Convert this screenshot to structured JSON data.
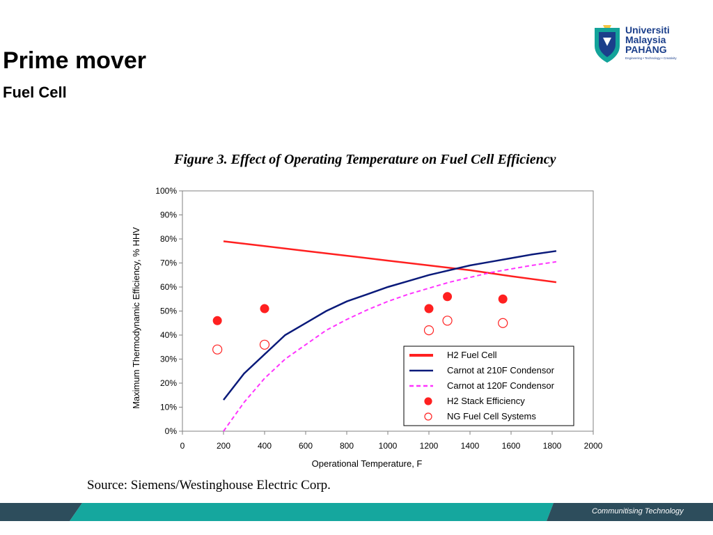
{
  "slide": {
    "title": "Prime mover",
    "subtitle": "Fuel Cell",
    "figure_caption": "Figure 3.  Effect of Operating Temperature on Fuel Cell Efficiency",
    "source": "Source:  Siemens/Westinghouse Electric Corp.",
    "footer_text": "Communitising Technology",
    "logo": {
      "line1": "Universiti",
      "line2": "Malaysia",
      "line3": "PAHANG",
      "tagline": "Engineering • Technology • Creativity",
      "badge": "UMP"
    },
    "colors": {
      "logo_blue": "#1b3f8b",
      "logo_teal": "#13a39a",
      "footer_teal": "#15a79e",
      "footer_dark": "#2d4d5c"
    }
  },
  "chart_data": {
    "type": "line",
    "xlabel": "Operational Temperature, F",
    "ylabel": "Maximum Thermodynamic Efficiency, % HHV",
    "xlim": [
      0,
      2000
    ],
    "ylim": [
      0,
      100
    ],
    "x_ticks": [
      "0",
      "200",
      "400",
      "600",
      "800",
      "1000",
      "1200",
      "1400",
      "1600",
      "1800",
      "2000"
    ],
    "y_ticks": [
      "0%",
      "10%",
      "20%",
      "30%",
      "40%",
      "50%",
      "60%",
      "70%",
      "80%",
      "90%",
      "100%"
    ],
    "grid": false,
    "legend_position": "bottom-right",
    "series": [
      {
        "name": "H2 Fuel Cell",
        "style": "line",
        "color": "#ff2020",
        "points": [
          [
            200,
            79
          ],
          [
            400,
            77
          ],
          [
            600,
            75
          ],
          [
            800,
            73
          ],
          [
            1000,
            71
          ],
          [
            1200,
            69
          ],
          [
            1400,
            67
          ],
          [
            1600,
            64.5
          ],
          [
            1820,
            62
          ]
        ]
      },
      {
        "name": "Carnot at 210F Condensor",
        "style": "line",
        "color": "#0a1a7a",
        "points": [
          [
            200,
            13
          ],
          [
            300,
            24
          ],
          [
            400,
            32
          ],
          [
            500,
            40
          ],
          [
            600,
            45
          ],
          [
            700,
            50
          ],
          [
            800,
            54
          ],
          [
            900,
            57
          ],
          [
            1000,
            60
          ],
          [
            1100,
            62.5
          ],
          [
            1200,
            65
          ],
          [
            1300,
            67
          ],
          [
            1400,
            69
          ],
          [
            1500,
            70.5
          ],
          [
            1600,
            72
          ],
          [
            1700,
            73.5
          ],
          [
            1820,
            75
          ]
        ]
      },
      {
        "name": "Carnot at 120F Condensor",
        "style": "dashed",
        "color": "#ff33ff",
        "points": [
          [
            200,
            0
          ],
          [
            300,
            12
          ],
          [
            400,
            22
          ],
          [
            500,
            30
          ],
          [
            600,
            36
          ],
          [
            700,
            42
          ],
          [
            800,
            46.5
          ],
          [
            900,
            50.5
          ],
          [
            1000,
            54
          ],
          [
            1100,
            57
          ],
          [
            1200,
            59.5
          ],
          [
            1300,
            62
          ],
          [
            1400,
            64
          ],
          [
            1500,
            66
          ],
          [
            1600,
            67.5
          ],
          [
            1700,
            69
          ],
          [
            1820,
            70.5
          ]
        ]
      },
      {
        "name": "H2 Stack Efficiency",
        "style": "filled-marker",
        "color": "#ff2020",
        "points": [
          [
            170,
            46
          ],
          [
            400,
            51
          ],
          [
            1200,
            51
          ],
          [
            1290,
            56
          ],
          [
            1560,
            55
          ]
        ]
      },
      {
        "name": "NG Fuel Cell Systems",
        "style": "open-marker",
        "color": "#ff2020",
        "points": [
          [
            170,
            34
          ],
          [
            400,
            36
          ],
          [
            1200,
            42
          ],
          [
            1290,
            46
          ],
          [
            1560,
            45
          ]
        ]
      }
    ]
  }
}
